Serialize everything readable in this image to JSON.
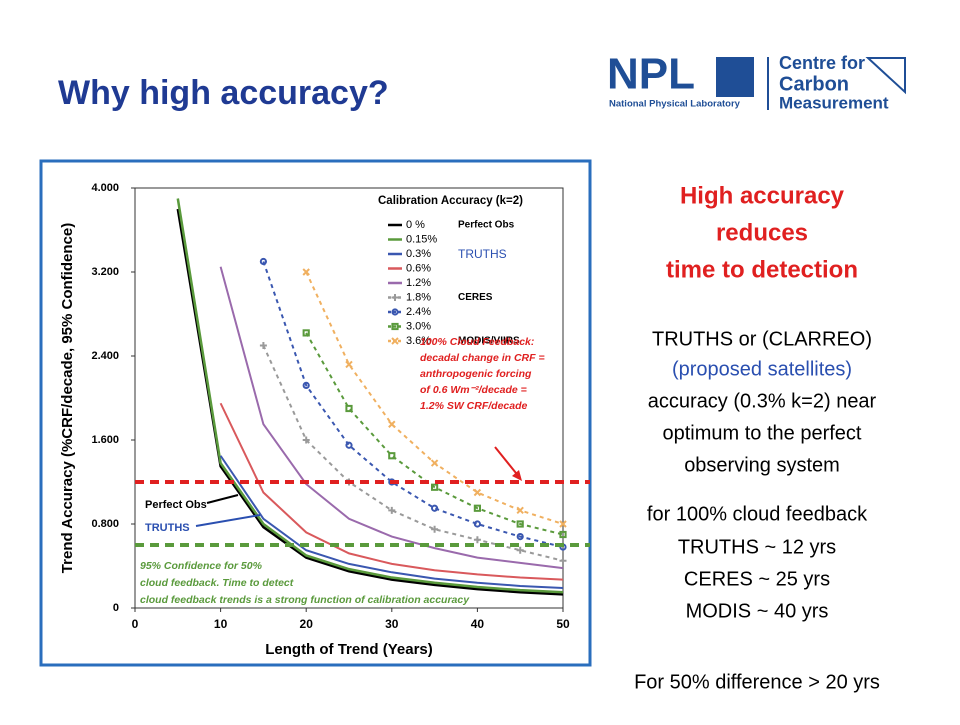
{
  "slide": {
    "title": "Why high accuracy?",
    "logo": {
      "npl": "NPL",
      "npl_sub": "National Physical Laboratory",
      "ccm": [
        "Centre for",
        "Carbon",
        "Measurement"
      ]
    },
    "headline": [
      "High accuracy",
      "reduces",
      "time to detection"
    ],
    "body": [
      "TRUTHS or (CLARREO)",
      "(proposed satellites)",
      "accuracy (0.3% k=2) near",
      "optimum to the perfect",
      "observing system"
    ],
    "feedback": [
      "for 100% cloud feedback",
      "TRUTHS ~ 12 yrs",
      "CERES ~ 25 yrs",
      "MODIS ~ 40 yrs"
    ],
    "footer": "For 50% difference > 20 yrs"
  },
  "chart_data": {
    "type": "line",
    "legend_title": "Calibration Accuracy (k=2)",
    "x_label": "Length of Trend (Years)",
    "y_label": "Trend Accuracy (%CRF/decade, 95% Confidence)",
    "xlim": [
      0,
      50
    ],
    "xticks": [
      0,
      10,
      20,
      30,
      40,
      50
    ],
    "ylim": [
      0,
      4
    ],
    "yticks": [
      0,
      {
        "value": 0.8,
        "label": "0.800"
      },
      {
        "value": 1.6,
        "label": "1.600"
      },
      {
        "value": 2.4,
        "label": "2.400"
      },
      {
        "value": 3.2,
        "label": "3.200"
      },
      {
        "value": 4,
        "label": "4.000"
      }
    ],
    "x": [
      5,
      10,
      15,
      20,
      25,
      30,
      35,
      40,
      45,
      50
    ],
    "series": [
      {
        "name": "0 %",
        "color": "#000000",
        "dash": false,
        "values": [
          3.8,
          1.35,
          0.77,
          0.48,
          0.35,
          0.27,
          0.22,
          0.18,
          0.15,
          0.13
        ]
      },
      {
        "name": "0.15%",
        "color": "#5a9a3c",
        "dash": false,
        "values": [
          3.9,
          1.38,
          0.8,
          0.5,
          0.37,
          0.29,
          0.24,
          0.2,
          0.17,
          0.15
        ]
      },
      {
        "name": "0.3%",
        "color": "#3a57b0",
        "dash": false,
        "values": [
          null,
          1.45,
          0.85,
          0.55,
          0.42,
          0.34,
          0.28,
          0.24,
          0.21,
          0.19
        ]
      },
      {
        "name": "0.6%",
        "color": "#d9595c",
        "dash": false,
        "values": [
          null,
          1.95,
          1.1,
          0.72,
          0.52,
          0.42,
          0.36,
          0.32,
          0.29,
          0.27
        ]
      },
      {
        "name": "1.2%",
        "color": "#9a6aac",
        "dash": false,
        "values": [
          null,
          3.25,
          1.75,
          1.18,
          0.85,
          0.68,
          0.57,
          0.48,
          0.43,
          0.38
        ]
      },
      {
        "name": "1.8%",
        "color": "#9a9a9a",
        "dash": true,
        "marker": "plus",
        "values": [
          null,
          null,
          2.5,
          1.6,
          1.2,
          0.93,
          0.75,
          0.65,
          0.55,
          0.45
        ]
      },
      {
        "name": "2.4%",
        "color": "#3a57b0",
        "dash": true,
        "marker": "circle",
        "values": [
          null,
          null,
          3.3,
          2.12,
          1.55,
          1.2,
          0.95,
          0.8,
          0.68,
          0.58
        ]
      },
      {
        "name": "3.0%",
        "color": "#5a9a3c",
        "dash": true,
        "marker": "square",
        "values": [
          null,
          null,
          null,
          2.62,
          1.9,
          1.45,
          1.15,
          0.95,
          0.8,
          0.7
        ]
      },
      {
        "name": "3.6%",
        "color": "#f0b060",
        "dash": true,
        "marker": "cross",
        "values": [
          null,
          null,
          null,
          3.2,
          2.32,
          1.75,
          1.38,
          1.1,
          0.93,
          0.8
        ]
      }
    ],
    "legend_groups": [
      {
        "label": "Perfect Obs",
        "row": 0
      },
      {
        "label": "TRUTHS",
        "row": 2
      },
      {
        "label": "CERES",
        "row": 5
      },
      {
        "label": "MODIS/VIIRS",
        "row": 8
      }
    ],
    "reference_lines": [
      {
        "value": 1.2,
        "color": "#e02020"
      },
      {
        "value": 0.6,
        "color": "#5a9a3c"
      }
    ],
    "annotations": {
      "cloud": [
        "100% Cloud Feedback:",
        "decadal change in CRF =",
        "anthropogenic forcing",
        "of 0.6 Wm⁻²/decade =",
        "1.2% SW CRF/decade"
      ],
      "perfect": "Perfect Obs",
      "truths": "TRUTHS",
      "confidence": [
        "95% Confidence for 50%",
        "cloud feedback.  Time to detect",
        "cloud feedback trends is a strong function of calibration accuracy"
      ]
    }
  }
}
